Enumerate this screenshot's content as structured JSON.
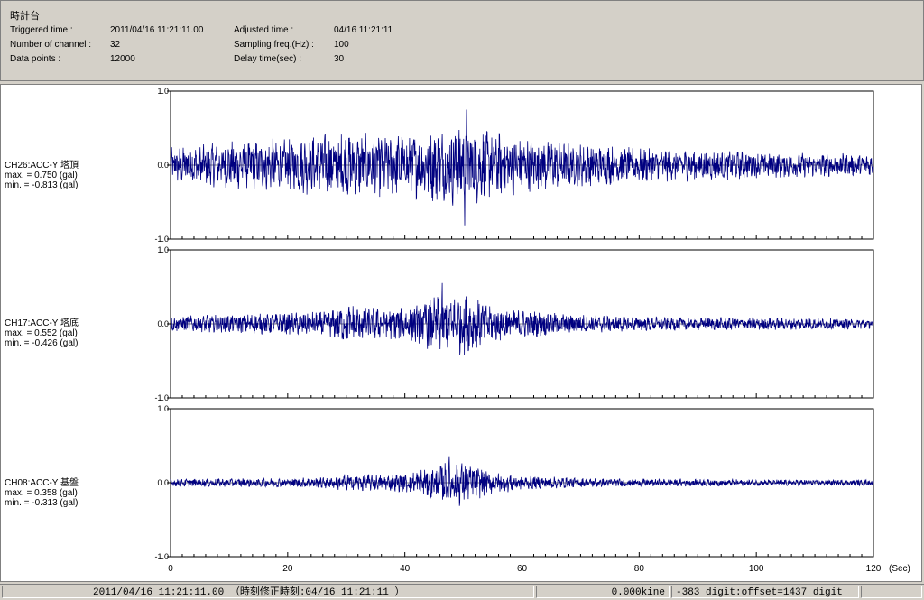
{
  "header": {
    "title": "時計台",
    "triggered_label": "Triggered time :",
    "triggered_value": "2011/04/16 11:21:11.00",
    "channels_label": "Number of channel :",
    "channels_value": "32",
    "datapoints_label": "Data points :",
    "datapoints_value": "12000",
    "adjusted_label": "Adjusted time :",
    "adjusted_value": "04/16 11:21:11",
    "sampling_label": "Sampling freq.(Hz) :",
    "sampling_value": "100",
    "delay_label": "Delay time(sec) :",
    "delay_value": "30"
  },
  "chart_data": {
    "type": "line",
    "x_unit": "(Sec)",
    "xlim": [
      0,
      120
    ],
    "x_ticks": [
      0,
      20,
      40,
      60,
      80,
      100,
      120
    ],
    "x_tick_labels": [
      "0",
      "20",
      "40",
      "60",
      "80",
      "100",
      "120"
    ],
    "ylim": [
      -1.0,
      1.0
    ],
    "y_tick_labels": [
      "1.0",
      "0.0",
      "-1.0"
    ],
    "line_color": "#000080",
    "series": [
      {
        "name": "CH26:ACC-Y 塔頂",
        "max_text": "max. = 0.750 (gal)",
        "min_text": "min. = -0.813 (gal)",
        "max": 0.75,
        "min": -0.813,
        "envelope": [
          [
            0,
            0.22
          ],
          [
            10,
            0.3
          ],
          [
            20,
            0.34
          ],
          [
            28,
            0.42
          ],
          [
            32,
            0.4
          ],
          [
            40,
            0.4
          ],
          [
            46,
            0.48
          ],
          [
            50,
            0.55
          ],
          [
            54,
            0.44
          ],
          [
            60,
            0.36
          ],
          [
            70,
            0.28
          ],
          [
            80,
            0.22
          ],
          [
            90,
            0.2
          ],
          [
            100,
            0.17
          ],
          [
            110,
            0.15
          ],
          [
            120,
            0.14
          ]
        ]
      },
      {
        "name": "CH17:ACC-Y 塔底",
        "max_text": "max. = 0.552 (gal)",
        "min_text": "min. = -0.426 (gal)",
        "max": 0.552,
        "min": -0.426,
        "envelope": [
          [
            0,
            0.1
          ],
          [
            10,
            0.12
          ],
          [
            20,
            0.14
          ],
          [
            27,
            0.16
          ],
          [
            30,
            0.26
          ],
          [
            36,
            0.2
          ],
          [
            40,
            0.22
          ],
          [
            44,
            0.32
          ],
          [
            47,
            0.38
          ],
          [
            50,
            0.4
          ],
          [
            54,
            0.26
          ],
          [
            60,
            0.18
          ],
          [
            70,
            0.12
          ],
          [
            80,
            0.09
          ],
          [
            100,
            0.08
          ],
          [
            120,
            0.07
          ]
        ]
      },
      {
        "name": "CH08:ACC-Y 基盤",
        "max_text": "max. = 0.358 (gal)",
        "min_text": "min. = -0.313 (gal)",
        "max": 0.358,
        "min": -0.313,
        "envelope": [
          [
            0,
            0.05
          ],
          [
            20,
            0.06
          ],
          [
            28,
            0.08
          ],
          [
            30,
            0.12
          ],
          [
            36,
            0.1
          ],
          [
            40,
            0.12
          ],
          [
            44,
            0.2
          ],
          [
            47,
            0.26
          ],
          [
            50,
            0.28
          ],
          [
            54,
            0.16
          ],
          [
            60,
            0.09
          ],
          [
            70,
            0.06
          ],
          [
            80,
            0.05
          ],
          [
            100,
            0.04
          ],
          [
            120,
            0.04
          ]
        ]
      }
    ]
  },
  "status": {
    "datetime": "2011/04/16 11:21:11.00 （時刻修正時刻:04/16 11:21:11 ）",
    "kine": "0.000kine",
    "digit": "-383 digit:offset=1437 digit"
  }
}
